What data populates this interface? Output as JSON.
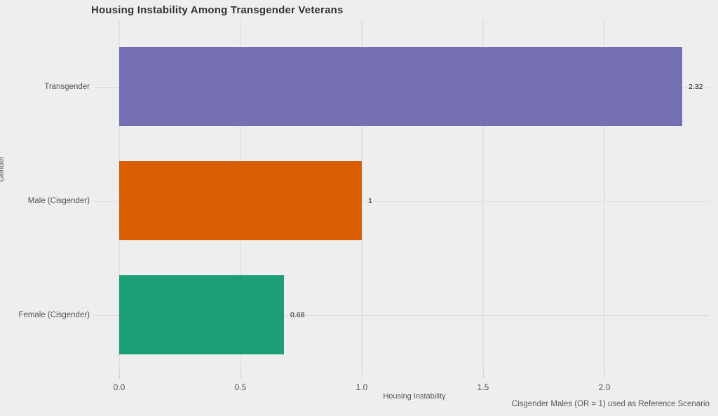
{
  "chart_data": {
    "type": "bar",
    "orientation": "horizontal",
    "title": "Housing Instability Among Transgender Veterans",
    "categories": [
      "Transgender",
      "Male (Cisgender)",
      "Female (Cisgender)"
    ],
    "values": [
      2.32,
      1,
      0.68
    ],
    "value_labels": [
      "2.32",
      "1",
      "0.68"
    ],
    "bar_colors": [
      "#7570B3",
      "#D95F02",
      "#1B9E77"
    ],
    "xlabel": "Housing Instability",
    "ylabel": "Gender",
    "x_ticks": [
      {
        "value": 0.0,
        "label": "0.0"
      },
      {
        "value": 0.5,
        "label": "0.5"
      },
      {
        "value": 1.0,
        "label": "1.0"
      },
      {
        "value": 1.5,
        "label": "1.5"
      },
      {
        "value": 2.0,
        "label": "2.0"
      }
    ],
    "xlim": [
      0,
      2.43
    ],
    "grid": "vertical-and-category-lines",
    "legend": "none",
    "footnote": "Cisgender Males (OR = 1) used as Reference Scenario",
    "colors": {
      "background": "#EEEEEE",
      "vertical_gridline": "#E2E2E2",
      "category_line": "#DEDEDE",
      "title_text": "#333333",
      "axis_text": "#555555",
      "value_text": "#1A1A1A"
    }
  }
}
